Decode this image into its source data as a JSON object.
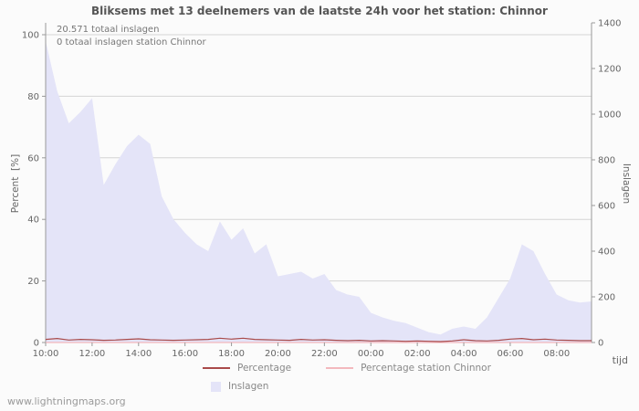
{
  "title": "Bliksems met 13 deelnemers van de laatste 24h voor het station: Chinnor",
  "annotations": {
    "total": "20.571 totaal inslagen",
    "station_total": "0 totaal inslagen station Chinnor"
  },
  "axes": {
    "left_label": "Percent  [%]",
    "right_label": "Inslagen",
    "x_label": "tijd"
  },
  "legend": {
    "percentage": "Percentage",
    "station": "Percentage station Chinnor",
    "inslagen": "Inslagen"
  },
  "footer": "www.lightningmaps.org",
  "colors": {
    "area": "#e4e4f8",
    "percentage": "#a94a4a",
    "station": "#f3b8bd",
    "grid": "#d4d4d4",
    "axis": "#999999",
    "tick_text": "#666666"
  },
  "chart_data": {
    "type": "area",
    "title": "Bliksems met 13 deelnemers van de laatste 24h voor het station: Chinnor",
    "x_tick_labels": [
      "10:00",
      "12:00",
      "14:00",
      "16:00",
      "18:00",
      "20:00",
      "22:00",
      "00:00",
      "02:00",
      "04:00",
      "06:00",
      "08:00"
    ],
    "x_step_minutes": 30,
    "left_axis": {
      "label": "Percent [%]",
      "min": 0,
      "max": 100,
      "ticks": [
        0,
        20,
        40,
        60,
        80,
        100
      ]
    },
    "right_axis": {
      "label": "Inslagen",
      "min": 0,
      "max": 1400,
      "ticks": [
        0,
        200,
        400,
        600,
        800,
        1000,
        1200,
        1400
      ]
    },
    "grid": true,
    "legend_position": "bottom",
    "series": [
      {
        "name": "Inslagen",
        "type": "area",
        "axis": "right",
        "values": [
          1320,
          1100,
          960,
          1010,
          1070,
          690,
          780,
          860,
          910,
          870,
          640,
          540,
          480,
          430,
          400,
          530,
          450,
          500,
          390,
          430,
          290,
          300,
          310,
          280,
          300,
          230,
          210,
          200,
          130,
          110,
          95,
          85,
          65,
          45,
          35,
          60,
          70,
          60,
          110,
          195,
          280,
          430,
          400,
          300,
          210,
          185,
          175,
          180
        ]
      },
      {
        "name": "Percentage station Chinnor",
        "type": "line",
        "axis": "left",
        "values": [
          0,
          0,
          0,
          0,
          0,
          0,
          0,
          0,
          0,
          0,
          0,
          0,
          0,
          0,
          0,
          0,
          0,
          0,
          0,
          0,
          0,
          0,
          0,
          0,
          0,
          0,
          0,
          0,
          0,
          0,
          0,
          0,
          0,
          0,
          0,
          0,
          0,
          0,
          0,
          0,
          0,
          0,
          0,
          0,
          0,
          0,
          0,
          0
        ]
      },
      {
        "name": "Percentage",
        "type": "line",
        "axis": "left",
        "values": [
          1.0,
          1.3,
          0.8,
          1.0,
          0.9,
          0.7,
          0.8,
          1.0,
          1.2,
          0.9,
          0.8,
          0.7,
          0.8,
          0.9,
          1.0,
          1.4,
          1.1,
          1.4,
          1.0,
          0.9,
          0.8,
          0.7,
          1.0,
          0.8,
          0.9,
          0.7,
          0.6,
          0.7,
          0.5,
          0.6,
          0.5,
          0.4,
          0.5,
          0.4,
          0.3,
          0.5,
          0.9,
          0.6,
          0.5,
          0.7,
          1.1,
          1.3,
          0.9,
          1.1,
          0.8,
          0.7,
          0.6,
          0.6
        ]
      }
    ]
  }
}
